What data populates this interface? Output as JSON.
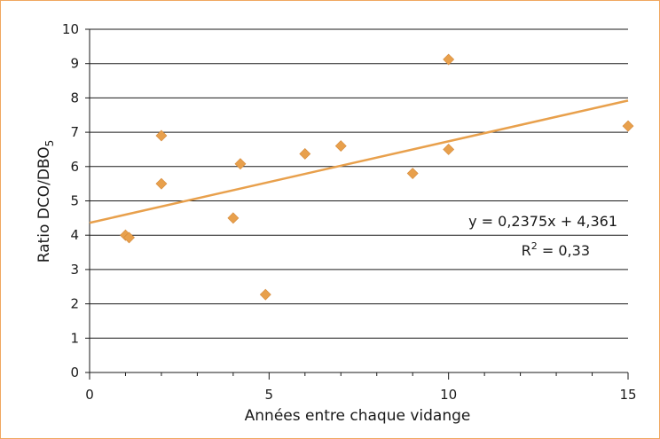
{
  "chart_data": {
    "type": "scatter",
    "xlabel": "Années entre chaque vidange",
    "ylabel_main": "Ratio DCO/DBO",
    "ylabel_sub": "5",
    "xlim": [
      0,
      15
    ],
    "ylim": [
      0,
      10
    ],
    "x_major_ticks": [
      0,
      5,
      10,
      15
    ],
    "x_minor_ticks": [
      1,
      2,
      3,
      4,
      6,
      7,
      8,
      9,
      11,
      12,
      13,
      14
    ],
    "y_ticks": [
      0,
      1,
      2,
      3,
      4,
      5,
      6,
      7,
      8,
      9,
      10
    ],
    "grid": "horizontal",
    "series": [
      {
        "marker": "diamond",
        "color": "#e8a04c",
        "points": [
          {
            "x": 1,
            "y": 4.0
          },
          {
            "x": 1.1,
            "y": 3.93
          },
          {
            "x": 2,
            "y": 6.9
          },
          {
            "x": 2,
            "y": 5.5
          },
          {
            "x": 4,
            "y": 4.5
          },
          {
            "x": 4.2,
            "y": 6.08
          },
          {
            "x": 4.9,
            "y": 2.27
          },
          {
            "x": 6,
            "y": 6.37
          },
          {
            "x": 7,
            "y": 6.6
          },
          {
            "x": 9,
            "y": 5.8
          },
          {
            "x": 10,
            "y": 9.12
          },
          {
            "x": 10,
            "y": 6.5
          },
          {
            "x": 15,
            "y": 7.18
          }
        ]
      }
    ],
    "trendline": {
      "slope": 0.2375,
      "intercept": 4.361,
      "color": "#e8a04c",
      "equation_label": "y = 0,2375x + 4,361",
      "r2_prefix": "R",
      "r2_sup": "2",
      "r2_value": " = 0,33"
    }
  },
  "colors": {
    "frame": "#f0a760",
    "marker": "#e8a04c",
    "grid": "#1a1a1a"
  }
}
